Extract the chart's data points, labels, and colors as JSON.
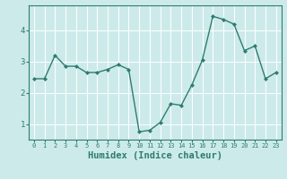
{
  "x": [
    0,
    1,
    2,
    3,
    4,
    5,
    6,
    7,
    8,
    9,
    10,
    11,
    12,
    13,
    14,
    15,
    16,
    17,
    18,
    19,
    20,
    21,
    22,
    23
  ],
  "y": [
    2.45,
    2.45,
    3.2,
    2.85,
    2.85,
    2.65,
    2.65,
    2.75,
    2.9,
    2.75,
    0.75,
    0.8,
    1.05,
    1.65,
    1.6,
    2.25,
    3.05,
    4.45,
    4.35,
    4.2,
    3.35,
    3.5,
    2.45,
    2.65
  ],
  "line_color": "#2d7d6e",
  "marker": "D",
  "marker_size": 2.0,
  "linewidth": 1.0,
  "xlabel": "Humidex (Indice chaleur)",
  "xlabel_fontsize": 7.5,
  "bg_color": "#cdeaea",
  "grid_color": "#ffffff",
  "grid_linewidth": 0.7,
  "tick_color": "#2d7d6e",
  "label_color": "#2d7d6e",
  "ylim": [
    0.5,
    4.8
  ],
  "xlim": [
    -0.5,
    23.5
  ],
  "yticks": [
    1,
    2,
    3,
    4
  ],
  "ytick_fontsize": 6.5,
  "xtick_fontsize": 5.0,
  "xticks": [
    0,
    1,
    2,
    3,
    4,
    5,
    6,
    7,
    8,
    9,
    10,
    11,
    12,
    13,
    14,
    15,
    16,
    17,
    18,
    19,
    20,
    21,
    22,
    23
  ]
}
